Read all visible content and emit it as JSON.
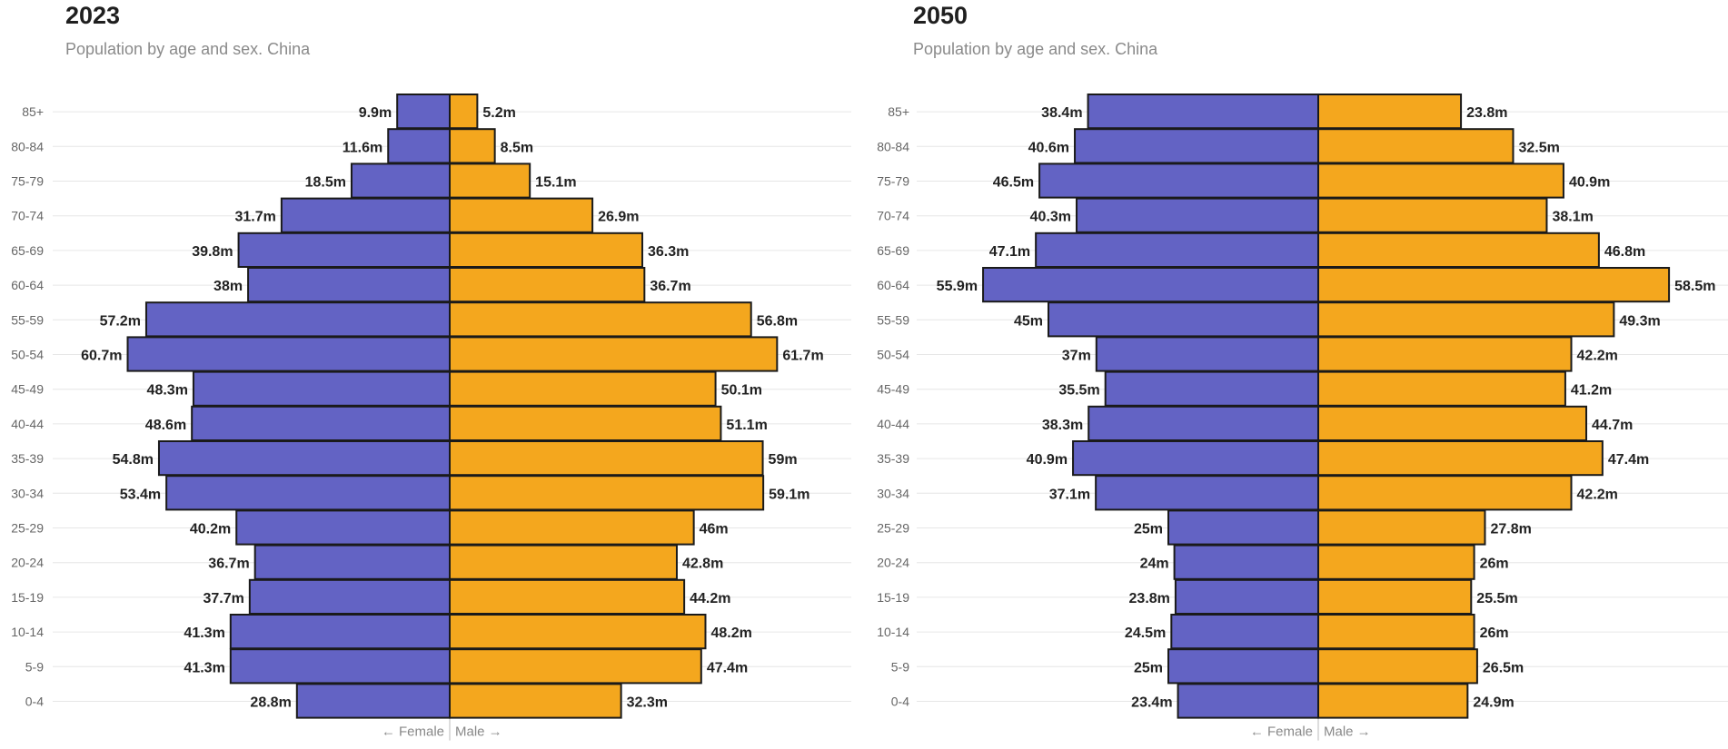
{
  "chart_data": [
    {
      "type": "bar",
      "orientation": "horizontal",
      "title": "2023",
      "subtitle": "Population by age and sex. China",
      "categories": [
        "85+",
        "80-84",
        "75-79",
        "70-74",
        "65-69",
        "60-64",
        "55-59",
        "50-54",
        "45-49",
        "40-44",
        "35-39",
        "30-34",
        "25-29",
        "20-24",
        "15-19",
        "10-14",
        "5-9",
        "0-4"
      ],
      "series": [
        {
          "name": "Female",
          "color": "#6363c4",
          "values": [
            9.9,
            11.6,
            18.5,
            31.7,
            39.8,
            38,
            57.2,
            60.7,
            48.3,
            48.6,
            54.8,
            53.4,
            40.2,
            36.7,
            37.7,
            41.3,
            41.3,
            28.8
          ],
          "labels": [
            "9.9m",
            "11.6m",
            "18.5m",
            "31.7m",
            "39.8m",
            "38m",
            "57.2m",
            "60.7m",
            "48.3m",
            "48.6m",
            "54.8m",
            "53.4m",
            "40.2m",
            "36.7m",
            "37.7m",
            "41.3m",
            "41.3m",
            "28.8m"
          ]
        },
        {
          "name": "Male",
          "color": "#f4a71e",
          "values": [
            5.2,
            8.5,
            15.1,
            26.9,
            36.3,
            36.7,
            56.8,
            61.7,
            50.1,
            51.1,
            59,
            59.1,
            46,
            42.8,
            44.2,
            48.2,
            47.4,
            32.3
          ],
          "labels": [
            "5.2m",
            "8.5m",
            "15.1m",
            "26.9m",
            "36.3m",
            "36.7m",
            "56.8m",
            "61.7m",
            "50.1m",
            "51.1m",
            "59m",
            "59.1m",
            "46m",
            "42.8m",
            "44.2m",
            "48.2m",
            "47.4m",
            "32.3m"
          ]
        }
      ],
      "xlabel_left": "← Female",
      "xlabel_right": "Male →",
      "units": "millions"
    },
    {
      "type": "bar",
      "orientation": "horizontal",
      "title": "2050",
      "subtitle": "Population by age and sex. China",
      "categories": [
        "85+",
        "80-84",
        "75-79",
        "70-74",
        "65-69",
        "60-64",
        "55-59",
        "50-54",
        "45-49",
        "40-44",
        "35-39",
        "30-34",
        "25-29",
        "20-24",
        "15-19",
        "10-14",
        "5-9",
        "0-4"
      ],
      "series": [
        {
          "name": "Female",
          "color": "#6363c4",
          "values": [
            38.4,
            40.6,
            46.5,
            40.3,
            47.1,
            55.9,
            45,
            37,
            35.5,
            38.3,
            40.9,
            37.1,
            25,
            24,
            23.8,
            24.5,
            25,
            23.4
          ],
          "labels": [
            "38.4m",
            "40.6m",
            "46.5m",
            "40.3m",
            "47.1m",
            "55.9m",
            "45m",
            "37m",
            "35.5m",
            "38.3m",
            "40.9m",
            "37.1m",
            "25m",
            "24m",
            "23.8m",
            "24.5m",
            "25m",
            "23.4m"
          ]
        },
        {
          "name": "Male",
          "color": "#f4a71e",
          "values": [
            23.8,
            32.5,
            40.9,
            38.1,
            46.8,
            58.5,
            49.3,
            42.2,
            41.2,
            44.7,
            47.4,
            42.2,
            27.8,
            26,
            25.5,
            26,
            26.5,
            24.9
          ],
          "labels": [
            "23.8m",
            "32.5m",
            "40.9m",
            "38.1m",
            "46.8m",
            "58.5m",
            "49.3m",
            "42.2m",
            "41.2m",
            "44.7m",
            "47.4m",
            "42.2m",
            "27.8m",
            "26m",
            "25.5m",
            "26m",
            "26.5m",
            "24.9m"
          ]
        }
      ],
      "xlabel_left": "← Female",
      "xlabel_right": "Male →",
      "units": "millions"
    }
  ]
}
